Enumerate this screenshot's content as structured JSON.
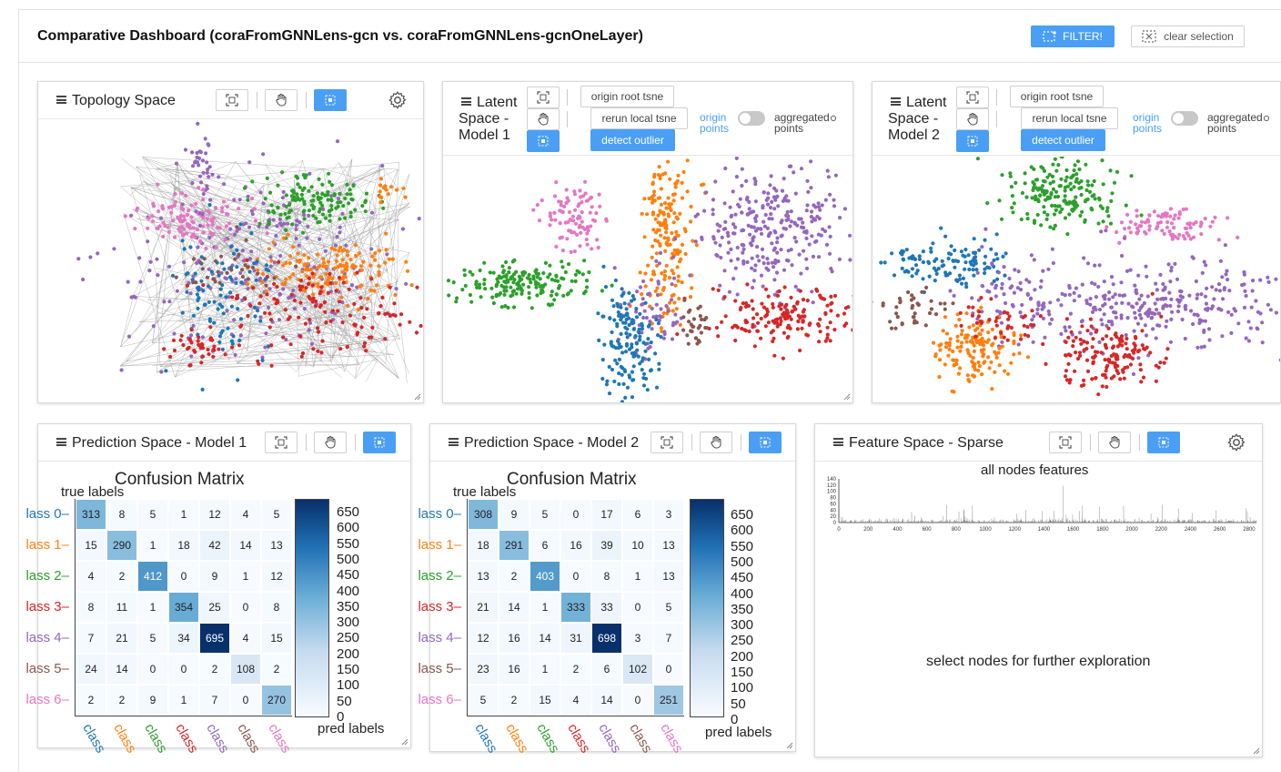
{
  "header": {
    "title": "Comparative Dashboard (coraFromGNNLens-gcn vs. coraFromGNNLens-gcnOneLayer)",
    "filter_label": "FILTER!",
    "clear_label": "clear selection"
  },
  "panels": {
    "topology": {
      "title": "Topology Space"
    },
    "latent1": {
      "title_l1": "Latent",
      "title_l2": "Space -",
      "title_l3": "Model 1"
    },
    "latent2": {
      "title_l1": "Latent",
      "title_l2": "Space -",
      "title_l3": "Model 2"
    },
    "latent_controls": {
      "origin_root_tsne": "origin root tsne",
      "rerun_local_tsne": "rerun local tsne",
      "detect_outlier": "detect outlier",
      "origin_points_l1": "origin",
      "origin_points_l2": "points",
      "aggregated_points_l1": "aggregated",
      "aggregated_points_l2": "points"
    },
    "pred1": {
      "title": "Prediction Space - Model 1"
    },
    "pred2": {
      "title": "Prediction Space - Model 2"
    },
    "feature": {
      "title": "Feature Space - Sparse",
      "chart_title": "all nodes features",
      "message": "select nodes for further exploration"
    }
  },
  "confusion": {
    "title": "Confusion Matrix",
    "ylabel": "true labels",
    "xlabel": "pred labels",
    "row_labels": [
      "lass 0",
      "lass 1",
      "lass 2",
      "lass 3",
      "lass 4",
      "lass 5",
      "lass 6"
    ],
    "col_labels": [
      "class",
      "class",
      "class",
      "class",
      "class",
      "class",
      "class"
    ],
    "class_colors": [
      "#1f77b4",
      "#ff7f0e",
      "#2ca02c",
      "#d62728",
      "#9467bd",
      "#8c564b",
      "#e377c2"
    ],
    "colorbar_ticks": [
      "650",
      "600",
      "550",
      "500",
      "450",
      "400",
      "350",
      "300",
      "250",
      "200",
      "150",
      "100",
      "50",
      "0"
    ],
    "vmax": 695
  },
  "chart_data": [
    {
      "type": "heatmap",
      "title": "Confusion Matrix",
      "xlabel": "pred labels",
      "ylabel": "true labels",
      "values": [
        [
          313,
          8,
          5,
          1,
          12,
          4,
          5
        ],
        [
          15,
          290,
          1,
          18,
          42,
          14,
          13
        ],
        [
          4,
          2,
          412,
          0,
          9,
          1,
          12
        ],
        [
          8,
          11,
          1,
          354,
          25,
          0,
          8
        ],
        [
          7,
          21,
          5,
          34,
          695,
          4,
          15
        ],
        [
          24,
          14,
          0,
          0,
          2,
          108,
          2
        ],
        [
          2,
          2,
          9,
          1,
          7,
          0,
          270
        ]
      ]
    },
    {
      "type": "heatmap",
      "title": "Confusion Matrix",
      "xlabel": "pred labels",
      "ylabel": "true labels",
      "values": [
        [
          308,
          9,
          5,
          0,
          17,
          6,
          3
        ],
        [
          18,
          291,
          6,
          16,
          39,
          10,
          13
        ],
        [
          13,
          2,
          403,
          0,
          8,
          1,
          13
        ],
        [
          21,
          14,
          1,
          333,
          33,
          0,
          5
        ],
        [
          12,
          16,
          14,
          31,
          698,
          3,
          7
        ],
        [
          23,
          16,
          1,
          2,
          6,
          102,
          0
        ],
        [
          5,
          2,
          15,
          4,
          14,
          0,
          251
        ]
      ]
    },
    {
      "type": "bar",
      "title": "all nodes features",
      "x_ticks": [
        "0",
        "200",
        "400",
        "600",
        "800",
        "1000",
        "1200",
        "1400",
        "1600",
        "1800",
        "2000",
        "2200",
        "2400",
        "2600",
        "2800"
      ],
      "y_ticks": [
        "0",
        "20",
        "40",
        "60",
        "80",
        "100",
        "120",
        "140"
      ],
      "xlim": [
        0,
        2850
      ],
      "ylim": [
        0,
        140
      ]
    }
  ]
}
